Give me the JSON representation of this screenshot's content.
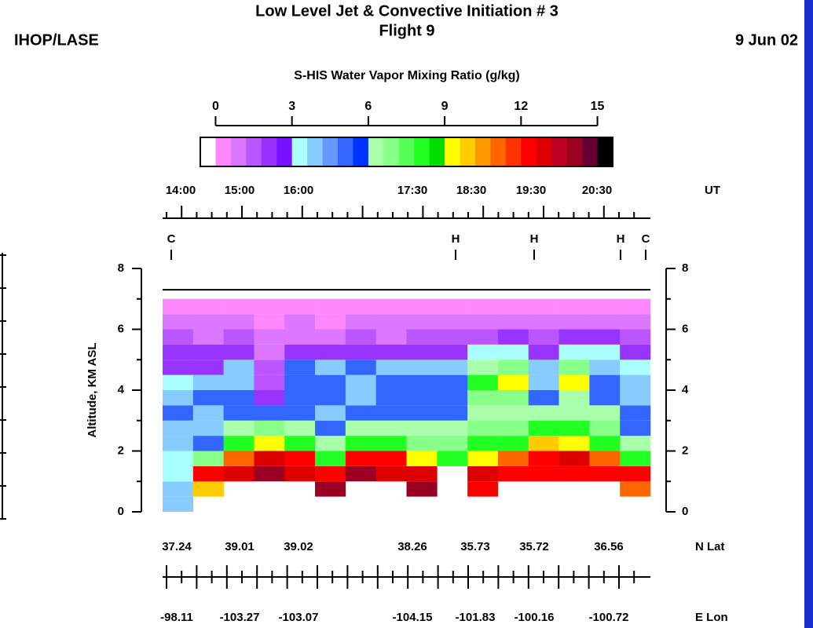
{
  "chart_data": {
    "type": "curtain",
    "title": "Low Level Jet & Convective Initiation # 3",
    "subtitle": "Flight 9",
    "left_header": "IHOP/LASE",
    "date": "9 Jun 02",
    "colorbar_title": "S-HIS Water Vapor Mixing Ratio (g/kg)",
    "colorbar": {
      "range": [
        0,
        15
      ],
      "ticks": [
        0,
        3,
        6,
        9,
        12,
        15
      ],
      "colors": [
        "#ffffff",
        "#ff88ff",
        "#dd77ff",
        "#bb55ff",
        "#9933ff",
        "#7711ff",
        "#aaffff",
        "#88ccff",
        "#6699ff",
        "#3366ff",
        "#0033ff",
        "#aaffaa",
        "#88ff88",
        "#55ff55",
        "#22ff22",
        "#00dd00",
        "#ffff00",
        "#ffcc00",
        "#ff9900",
        "#ff6600",
        "#ff3300",
        "#ff0000",
        "#dd0000",
        "#bb0022",
        "#990022",
        "#660033",
        "#000000"
      ]
    },
    "y_label": "Altitude, KM ASL",
    "ylim": [
      0,
      8
    ],
    "yticks": [
      0,
      2,
      4,
      6,
      8
    ],
    "minor_yticks": [
      1,
      3,
      5,
      7
    ],
    "ut_axis_label": "UT",
    "ut_labels": [
      "14:00",
      "15:00",
      "16:00",
      "17:30",
      "18:30",
      "19:30",
      "20:30"
    ],
    "markers": [
      "C",
      "H",
      "H",
      "H",
      "C"
    ],
    "lat_axis_label": "N Lat",
    "lat": [
      37.24,
      39.01,
      39.02,
      38.26,
      35.73,
      35.72,
      36.56
    ],
    "lon_axis_label": "E Lon",
    "lon": [
      -98.11,
      -103.27,
      -103.07,
      -104.15,
      -101.83,
      -100.16,
      -100.72
    ],
    "aircraft_altitude": 7.3,
    "altitude_bins": [
      0,
      0.5,
      1,
      1.5,
      2,
      2.5,
      3,
      3.5,
      4,
      4.5,
      5,
      5.5,
      6,
      6.5,
      7
    ],
    "profiles": [
      [
        4,
        4,
        3,
        3,
        4,
        4,
        5,
        4,
        3,
        2,
        2,
        1.5,
        1,
        0.5
      ],
      [
        null,
        10,
        12,
        7,
        5,
        4,
        4,
        5,
        4,
        2,
        2,
        1,
        1,
        0.5
      ],
      [
        null,
        null,
        13,
        11,
        8,
        6,
        5,
        5,
        4,
        4,
        2,
        1.5,
        1,
        0.5
      ],
      [
        null,
        null,
        14,
        13,
        9,
        7,
        5,
        2,
        1.5,
        1.5,
        1,
        1,
        0.5,
        0.5
      ],
      [
        null,
        null,
        13,
        12,
        8,
        6,
        5,
        5,
        5,
        5,
        2,
        1,
        1,
        0.5
      ],
      [
        null,
        14,
        12,
        8,
        6,
        5,
        4,
        5,
        5,
        4,
        2,
        1,
        0.5,
        0.5
      ],
      [
        null,
        null,
        14,
        12,
        8,
        6,
        5,
        4,
        4,
        5,
        2,
        1.5,
        1,
        0.5
      ],
      [
        null,
        null,
        13,
        12,
        8,
        6,
        5,
        5,
        5,
        4,
        2,
        1,
        1,
        0.5
      ],
      [
        null,
        14,
        13,
        9,
        7,
        6,
        5,
        5,
        5,
        4,
        2,
        1.5,
        1,
        0.5
      ],
      [
        null,
        null,
        null,
        8,
        7,
        6,
        5,
        5,
        5,
        4,
        2,
        1.5,
        1,
        0.5
      ],
      [
        null,
        12,
        13,
        9,
        8,
        7,
        6,
        7,
        8,
        6,
        3,
        1.5,
        1,
        0.5
      ],
      [
        null,
        null,
        12,
        11,
        8,
        7,
        6,
        7,
        9,
        7,
        3,
        2,
        1,
        0.5
      ],
      [
        null,
        null,
        12,
        12,
        10,
        8,
        6,
        5,
        4,
        4,
        2,
        1.5,
        1,
        0.5
      ],
      [
        null,
        null,
        12,
        13,
        9,
        8,
        6,
        6,
        9,
        7,
        3,
        2,
        1,
        0.5
      ],
      [
        null,
        null,
        12,
        11,
        8,
        7,
        6,
        5,
        5,
        4,
        3,
        2,
        1,
        0.5
      ],
      [
        null,
        11,
        12,
        8,
        6,
        5,
        5,
        4,
        4,
        3,
        2,
        1.5,
        1,
        0.5
      ]
    ]
  }
}
